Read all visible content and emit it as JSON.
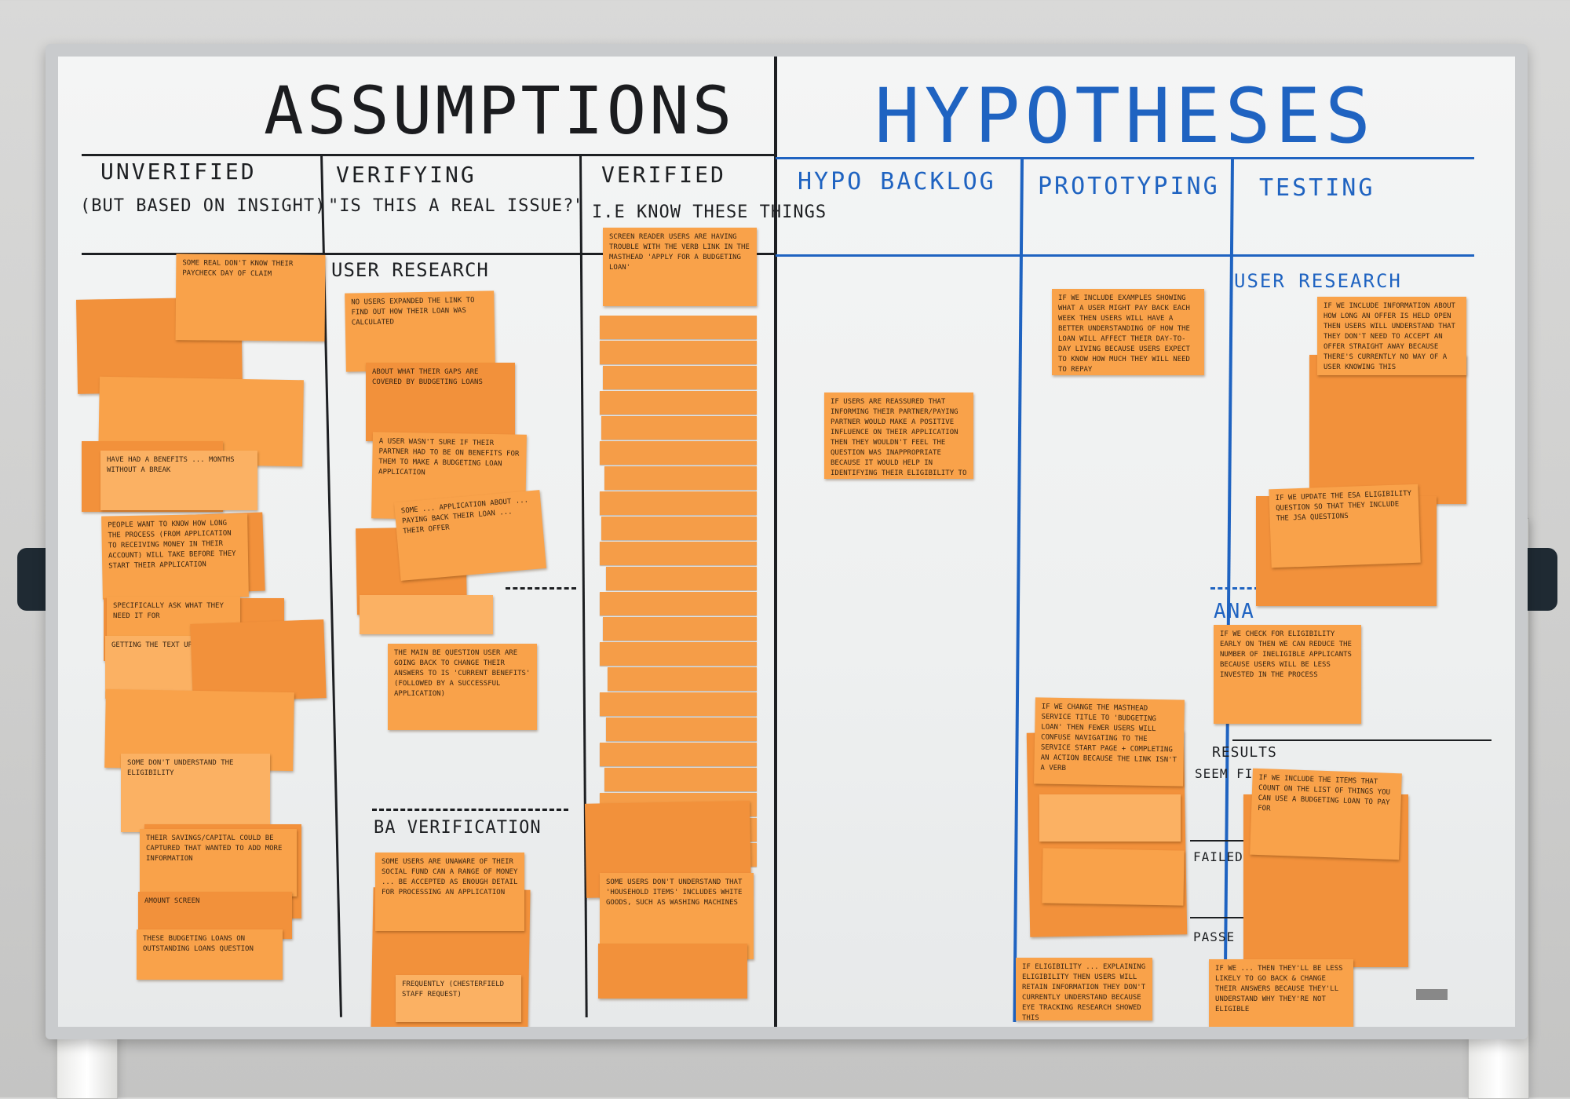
{
  "board": {
    "title_left": "ASSUMPTIONS",
    "title_right": "HYPOTHESES",
    "columns": [
      {
        "label": "UNVERIFIED",
        "sub": "(BUT BASED ON INSIGHT)"
      },
      {
        "label": "VERIFYING",
        "sub": "\"IS THIS A REAL ISSUE?\""
      },
      {
        "label": "VERIFIED",
        "sub": "I.E KNOW THESE THINGS"
      },
      {
        "label": "HYPO BACKLOG"
      },
      {
        "label": "PROTOTYPING"
      },
      {
        "label": "TESTING"
      }
    ],
    "sections": {
      "verifying_user_research": "USER RESEARCH",
      "verifying_ba": "BA VERIFICATION",
      "testing_user_research": "USER RESEARCH",
      "testing_analysis": "ANA",
      "testing_results": "RESULTS",
      "testing_seem_fine": "SEEM FINE",
      "testing_failed": "FAILED",
      "testing_passed": "PASSE"
    }
  },
  "notes": {
    "unverified": [
      "SOME REAL DON'T KNOW THEIR PAYCHECK DAY OF CLAIM",
      "HAVE HAD A BENEFITS ... MONTHS WITHOUT A BREAK",
      "PEOPLE WANT TO KNOW HOW LONG THE PROCESS (FROM APPLICATION TO RECEIVING MONEY IN THEIR ACCOUNT) WILL TAKE BEFORE THEY START THEIR APPLICATION",
      "SPECIFICALLY ASK WHAT THEY NEED IT FOR",
      "GETTING THE TEXT UPDATES",
      "SOME DON'T UNDERSTAND THE ELIGIBILITY",
      "THEIR SAVINGS/CAPITAL COULD BE CAPTURED THAT WANTED TO ADD MORE INFORMATION",
      "AMOUNT SCREEN",
      "THESE BUDGETING LOANS ON OUTSTANDING LOANS QUESTION"
    ],
    "verifying": [
      "NO USERS EXPANDED THE LINK TO FIND OUT HOW THEIR LOAN WAS CALCULATED",
      "ABOUT WHAT THEIR GAPS ARE COVERED BY BUDGETING LOANS",
      "A USER WASN'T SURE IF THEIR PARTNER HAD TO BE ON BENEFITS FOR THEM TO MAKE A BUDGETING LOAN APPLICATION",
      "SOME ... APPLICATION ABOUT ... PAYING BACK THEIR LOAN ... THEIR OFFER",
      "THE MAIN BE QUESTION USER ARE GOING BACK TO CHANGE THEIR ANSWERS TO IS 'CURRENT BENEFITS' (FOLLOWED BY A SUCCESSFUL APPLICATION)",
      "SOME USERS ARE UNAWARE OF THEIR SOCIAL FUND CAN A RANGE OF MONEY ... BE ACCEPTED AS ENOUGH DETAIL FOR PROCESSING AN APPLICATION",
      "FREQUENTLY (CHESTERFIELD STAFF REQUEST)"
    ],
    "verified": [
      "SCREEN READER USERS ARE HAVING TROUBLE WITH THE VERB LINK IN THE MASTHEAD 'APPLY FOR A BUDGETING LOAN'",
      "SOME USERS DON'T UNDERSTAND THAT 'HOUSEHOLD ITEMS' INCLUDES WHITE GOODS, SUCH AS WASHING MACHINES"
    ],
    "hypo_backlog": [
      "IF USERS ARE REASSURED THAT INFORMING THEIR PARTNER/PAYING PARTNER WOULD MAKE A POSITIVE INFLUENCE ON THEIR APPLICATION THEN THEY WOULDN'T FEEL THE QUESTION WAS INAPPROPRIATE BECAUSE IT WOULD HELP IN IDENTIFYING THEIR ELIGIBILITY TO A BL"
    ],
    "prototyping": [
      "IF WE INCLUDE EXAMPLES SHOWING WHAT A USER MIGHT PAY BACK EACH WEEK THEN USERS WILL HAVE A BETTER UNDERSTANDING OF HOW THE LOAN WILL AFFECT THEIR DAY-TO-DAY LIVING BECAUSE USERS EXPECT TO KNOW HOW MUCH THEY WILL NEED TO REPAY",
      "IF WE CHANGE THE MASTHEAD SERVICE TITLE TO 'BUDGETING LOAN' THEN FEWER USERS WILL CONFUSE NAVIGATING TO THE SERVICE START PAGE + COMPLETING AN ACTION BECAUSE THE LINK ISN'T A VERB",
      "IF ELIGIBILITY ... EXPLAINING ELIGIBILITY THEN USERS WILL RETAIN INFORMATION THEY DON'T CURRENTLY UNDERSTAND BECAUSE EYE TRACKING RESEARCH SHOWED THIS"
    ],
    "testing": [
      "IF WE INCLUDE INFORMATION ABOUT HOW LONG AN OFFER IS HELD OPEN THEN USERS WILL UNDERSTAND THAT THEY DON'T NEED TO ACCEPT AN OFFER STRAIGHT AWAY BECAUSE THERE'S CURRENTLY NO WAY OF A USER KNOWING THIS",
      "IF WE UPDATE THE ESA ELIGIBILITY QUESTION SO THAT THEY INCLUDE THE JSA QUESTIONS",
      "IF WE CHECK FOR ELIGIBILITY EARLY ON THEN WE CAN REDUCE THE NUMBER OF INELIGIBLE APPLICANTS BECAUSE USERS WILL BE LESS INVESTED IN THE PROCESS",
      "IF WE INCLUDE THE ITEMS THAT COUNT ON THE LIST OF THINGS YOU CAN USE A BUDGETING LOAN TO PAY FOR",
      "IF WE ... THEN THEY'LL BE LESS LIKELY TO GO BACK & CHANGE THEIR ANSWERS BECAUSE THEY'LL UNDERSTAND WHY THEY'RE NOT ELIGIBLE"
    ]
  }
}
